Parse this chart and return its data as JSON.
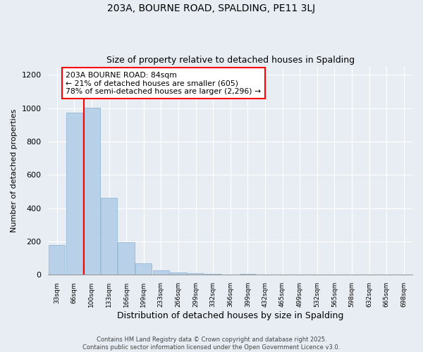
{
  "title1": "203A, BOURNE ROAD, SPALDING, PE11 3LJ",
  "title2": "Size of property relative to detached houses in Spalding",
  "xlabel": "Distribution of detached houses by size in Spalding",
  "ylabel": "Number of detached properties",
  "bar_color": "#b8d0e8",
  "bar_edge_color": "#8ab0d0",
  "background_color": "#e8edf4",
  "grid_color": "#ffffff",
  "annotation_text_line1": "203A BOURNE ROAD: 84sqm",
  "annotation_text_line2": "← 21% of detached houses are smaller (605)",
  "annotation_text_line3": "78% of semi-detached houses are larger (2,296) →",
  "footer_line1": "Contains HM Land Registry data © Crown copyright and database right 2025.",
  "footer_line2": "Contains public sector information licensed under the Open Government Licence v3.0.",
  "bin_labels": [
    "33sqm",
    "66sqm",
    "100sqm",
    "133sqm",
    "166sqm",
    "199sqm",
    "233sqm",
    "266sqm",
    "299sqm",
    "332sqm",
    "366sqm",
    "399sqm",
    "432sqm",
    "465sqm",
    "499sqm",
    "532sqm",
    "565sqm",
    "598sqm",
    "632sqm",
    "665sqm",
    "698sqm"
  ],
  "values": [
    180,
    975,
    1005,
    460,
    195,
    70,
    25,
    15,
    10,
    5,
    0,
    5,
    0,
    0,
    0,
    0,
    0,
    0,
    0,
    0,
    0
  ],
  "ylim": [
    0,
    1250
  ],
  "yticks": [
    0,
    200,
    400,
    600,
    800,
    1000,
    1200
  ],
  "red_line_index": 1.545
}
